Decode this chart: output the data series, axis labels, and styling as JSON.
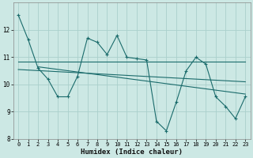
{
  "xlabel": "Humidex (Indice chaleur)",
  "ylabel": "",
  "xlim": [
    -0.5,
    23.5
  ],
  "ylim": [
    8,
    13
  ],
  "yticks": [
    8,
    9,
    10,
    11,
    12
  ],
  "xticks": [
    0,
    1,
    2,
    3,
    4,
    5,
    6,
    7,
    8,
    9,
    10,
    11,
    12,
    13,
    14,
    15,
    16,
    17,
    18,
    19,
    20,
    21,
    22,
    23
  ],
  "bg_color": "#cce8e4",
  "grid_color": "#aad0cc",
  "line_color": "#1a6b6b",
  "line1_x": [
    0,
    1,
    2,
    3,
    4,
    5,
    6,
    7,
    8,
    9,
    10,
    11,
    12,
    13,
    14,
    15,
    16,
    17,
    18,
    19,
    20,
    21,
    22,
    23
  ],
  "line1_y": [
    12.55,
    11.65,
    10.6,
    10.2,
    9.55,
    9.55,
    10.3,
    11.7,
    11.55,
    11.1,
    11.8,
    11.0,
    10.95,
    10.9,
    8.65,
    8.3,
    9.35,
    10.5,
    11.0,
    10.75,
    9.55,
    9.2,
    8.75,
    9.55
  ],
  "trend1_x": [
    0,
    23
  ],
  "trend1_y": [
    10.85,
    10.85
  ],
  "trend2_x": [
    2,
    23
  ],
  "trend2_y": [
    10.65,
    9.65
  ],
  "trend3_x": [
    0,
    23
  ],
  "trend3_y": [
    10.55,
    10.1
  ]
}
